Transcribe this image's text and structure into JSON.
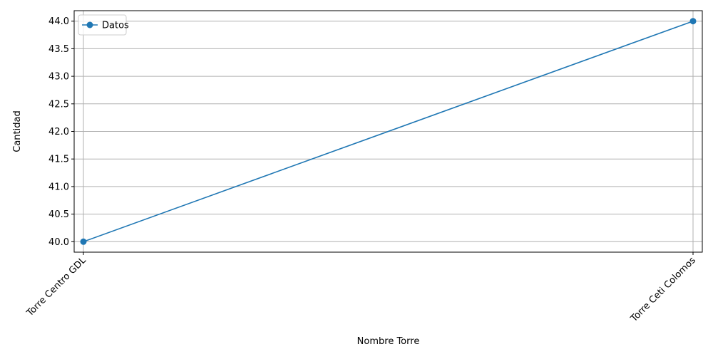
{
  "chart_data": {
    "type": "line",
    "title": "",
    "xlabel": "Nombre Torre",
    "ylabel": "Cantidad",
    "categories": [
      "Torre Centro GDL",
      "Torre Ceti Colomos"
    ],
    "series": [
      {
        "name": "Datos",
        "values": [
          40,
          44
        ],
        "color": "#1f77b4",
        "marker": "circle"
      }
    ],
    "ylim": [
      39.81,
      44.19
    ],
    "yticks": [
      40.0,
      40.5,
      41.0,
      41.5,
      42.0,
      42.5,
      43.0,
      43.5,
      44.0
    ],
    "ytick_labels": [
      "40.0",
      "40.5",
      "41.0",
      "41.5",
      "42.0",
      "42.5",
      "43.0",
      "43.5",
      "44.0"
    ],
    "grid": true,
    "legend_position": "top-left"
  }
}
